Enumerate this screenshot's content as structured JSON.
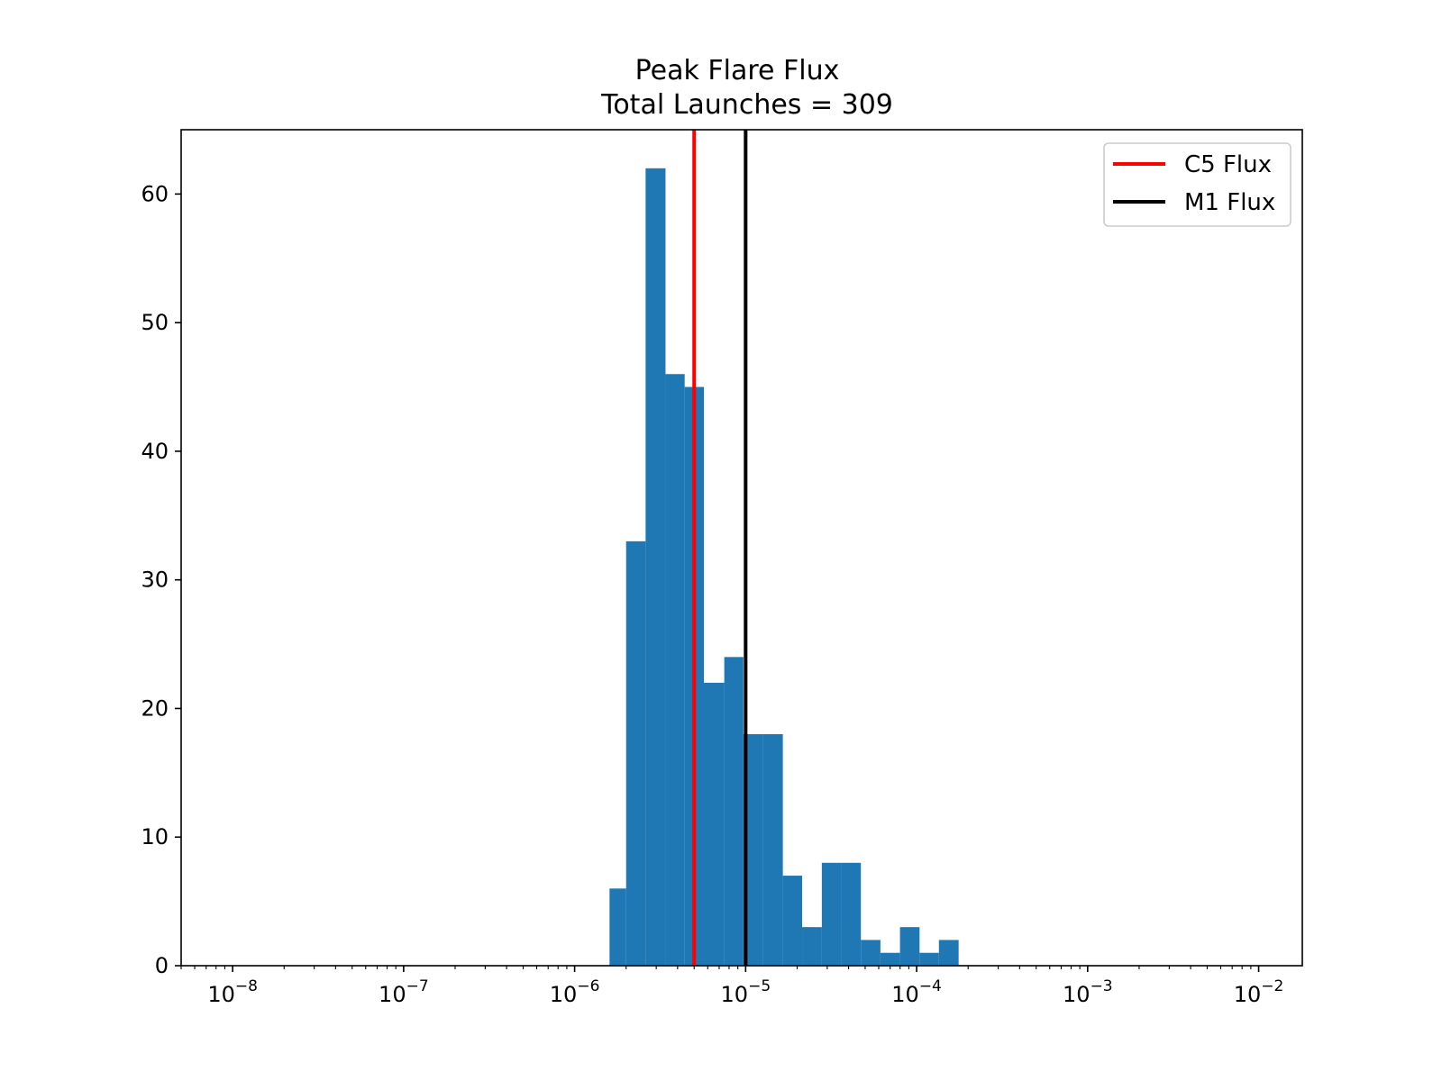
{
  "chart_data": {
    "type": "bar",
    "title": "Peak Flare Flux",
    "subtitle": "Total Launches = 309",
    "xlabel": "",
    "ylabel": "",
    "x_scale": "log",
    "xlim": [
      5e-09,
      0.018
    ],
    "ylim": [
      0,
      65
    ],
    "grid": false,
    "legend_position": "top-right",
    "x_ticks": [
      {
        "base": "10",
        "exp": "−8",
        "value": 1e-08
      },
      {
        "base": "10",
        "exp": "−7",
        "value": 1e-07
      },
      {
        "base": "10",
        "exp": "−6",
        "value": 1e-06
      },
      {
        "base": "10",
        "exp": "−5",
        "value": 1e-05
      },
      {
        "base": "10",
        "exp": "−4",
        "value": 0.0001
      },
      {
        "base": "10",
        "exp": "−3",
        "value": 0.001
      },
      {
        "base": "10",
        "exp": "−2",
        "value": 0.01
      }
    ],
    "y_ticks": [
      "0",
      "10",
      "20",
      "30",
      "40",
      "50",
      "60"
    ],
    "bar_color": "#1f77b4",
    "bins": [
      {
        "x0": 1.6e-06,
        "x1": 2e-06,
        "count": 6
      },
      {
        "x0": 2e-06,
        "x1": 2.6e-06,
        "count": 33
      },
      {
        "x0": 2.6e-06,
        "x1": 3.4e-06,
        "count": 62
      },
      {
        "x0": 3.4e-06,
        "x1": 4.4e-06,
        "count": 46
      },
      {
        "x0": 4.4e-06,
        "x1": 5.7e-06,
        "count": 45
      },
      {
        "x0": 5.7e-06,
        "x1": 7.5e-06,
        "count": 22
      },
      {
        "x0": 7.5e-06,
        "x1": 9.7e-06,
        "count": 24
      },
      {
        "x0": 9.7e-06,
        "x1": 1.26e-05,
        "count": 18
      },
      {
        "x0": 1.26e-05,
        "x1": 1.65e-05,
        "count": 18
      },
      {
        "x0": 1.65e-05,
        "x1": 2.14e-05,
        "count": 7
      },
      {
        "x0": 2.14e-05,
        "x1": 2.79e-05,
        "count": 3
      },
      {
        "x0": 2.79e-05,
        "x1": 3.63e-05,
        "count": 8
      },
      {
        "x0": 3.63e-05,
        "x1": 4.72e-05,
        "count": 8
      },
      {
        "x0": 4.72e-05,
        "x1": 6.14e-05,
        "count": 2
      },
      {
        "x0": 6.14e-05,
        "x1": 7.99e-05,
        "count": 1
      },
      {
        "x0": 7.99e-05,
        "x1": 0.000104,
        "count": 3
      },
      {
        "x0": 0.000104,
        "x1": 0.000135,
        "count": 1
      },
      {
        "x0": 0.000135,
        "x1": 0.000176,
        "count": 2
      }
    ],
    "reference_lines": [
      {
        "name": "C5 Flux",
        "value": 5e-06,
        "color": "#ff0000"
      },
      {
        "name": "M1 Flux",
        "value": 1e-05,
        "color": "#000000"
      }
    ]
  }
}
